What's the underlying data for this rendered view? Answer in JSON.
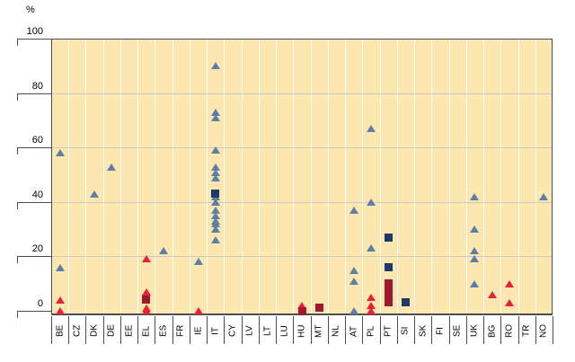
{
  "chart_data": {
    "type": "scatter",
    "title": "",
    "ylabel": "%",
    "xlabel": "",
    "ylim": [
      -2,
      100
    ],
    "y_ticks": [
      0,
      20,
      40,
      60,
      80,
      100
    ],
    "grid": "horizontal-gray-and-vertical-white",
    "legend": "none",
    "plot_bg_color": "#FBE7AF",
    "hgrid_color": "#C9C9C9",
    "vgrid_color": "#FFFFFF",
    "axis_color": "#4D4D4D",
    "categories": [
      "BE",
      "CZ",
      "DK",
      "DE",
      "EE",
      "EL",
      "ES",
      "FR",
      "IE",
      "IT",
      "CY",
      "LV",
      "LT",
      "LU",
      "HU",
      "MT",
      "NL",
      "AT",
      "PL",
      "PT",
      "SI",
      "SK",
      "FI",
      "SE",
      "UK",
      "BG",
      "RO",
      "TR",
      "NO"
    ],
    "series": [
      {
        "name": "blue-triangles",
        "marker": "triangle",
        "color": "#5C7FA8",
        "points": [
          [
            "BE",
            58
          ],
          [
            "BE",
            16
          ],
          [
            "DK",
            43
          ],
          [
            "DE",
            53
          ],
          [
            "ES",
            22
          ],
          [
            "IE",
            18
          ],
          [
            "IT",
            90
          ],
          [
            "IT",
            73
          ],
          [
            "IT",
            71
          ],
          [
            "IT",
            59
          ],
          [
            "IT",
            53
          ],
          [
            "IT",
            51
          ],
          [
            "IT",
            49
          ],
          [
            "IT",
            42
          ],
          [
            "IT",
            40
          ],
          [
            "IT",
            37
          ],
          [
            "IT",
            35
          ],
          [
            "IT",
            33
          ],
          [
            "IT",
            32
          ],
          [
            "IT",
            30
          ],
          [
            "IT",
            26
          ],
          [
            "AT",
            37
          ],
          [
            "AT",
            15
          ],
          [
            "AT",
            11
          ],
          [
            "AT",
            0
          ],
          [
            "PL",
            67
          ],
          [
            "PL",
            40
          ],
          [
            "PL",
            23
          ],
          [
            "UK",
            42
          ],
          [
            "UK",
            30
          ],
          [
            "UK",
            22
          ],
          [
            "UK",
            19
          ],
          [
            "UK",
            10
          ],
          [
            "NO",
            42
          ]
        ]
      },
      {
        "name": "red-triangles",
        "marker": "triangle",
        "color": "#E8213B",
        "points": [
          [
            "BE",
            4
          ],
          [
            "BE",
            0
          ],
          [
            "EL",
            19
          ],
          [
            "EL",
            7
          ],
          [
            "EL",
            1
          ],
          [
            "EL",
            0
          ],
          [
            "IE",
            0
          ],
          [
            "HU",
            2
          ],
          [
            "PL",
            5
          ],
          [
            "PL",
            2
          ],
          [
            "PL",
            0
          ],
          [
            "BG",
            6
          ],
          [
            "RO",
            10
          ],
          [
            "RO",
            3
          ]
        ]
      },
      {
        "name": "navy-squares",
        "marker": "square",
        "color": "#1B3A6B",
        "points": [
          [
            "IT",
            43
          ],
          [
            "PT",
            27
          ],
          [
            "PT",
            16
          ],
          [
            "SI",
            3
          ]
        ]
      },
      {
        "name": "maroon-squares",
        "marker": "square",
        "color": "#9E1930",
        "points": [
          [
            "EL",
            4
          ],
          [
            "HU",
            0
          ],
          [
            "MT",
            1
          ],
          [
            "PT",
            10
          ],
          [
            "PT",
            8
          ],
          [
            "PT",
            5
          ],
          [
            "PT",
            3
          ]
        ]
      }
    ]
  }
}
